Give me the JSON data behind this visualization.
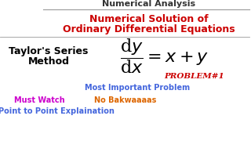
{
  "bg_color": "#ffffff",
  "title1": "Numerical Analysis",
  "title1_color": "#333333",
  "title2": "Numerical Solution of",
  "title3": "Ordinary Differential Equations",
  "title23_color": "#cc0000",
  "left_label1": "Taylor's Series",
  "left_label2": "Method",
  "left_color": "#000000",
  "problem_text": "PROBLEM#1",
  "problem_color": "#cc0000",
  "most_important": "Most Important Problem",
  "most_important_color": "#4466dd",
  "must_watch": "Must Watch",
  "must_watch_color": "#cc00cc",
  "no_bakwaaaas": "No Bakwaaaas",
  "no_bakwaaaas_color": "#dd6600",
  "point_to_point": "Point to Point Explaination",
  "point_to_point_color": "#4466dd",
  "divider_color": "#999999",
  "formula_color": "#000000"
}
